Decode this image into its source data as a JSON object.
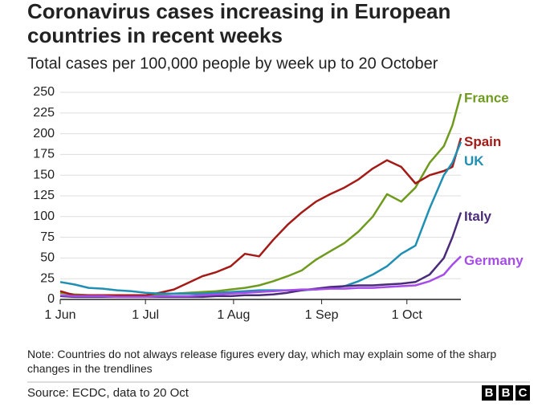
{
  "chart_data": {
    "type": "line",
    "title": [
      "Coronavirus cases increasing in European",
      "countries in recent weeks"
    ],
    "subtitle": "Total cases per 100,000 people by week up to 20 October",
    "x": [
      "1 Jun",
      "6 Jun",
      "11 Jun",
      "16 Jun",
      "21 Jun",
      "26 Jun",
      "1 Jul",
      "6 Jul",
      "11 Jul",
      "16 Jul",
      "21 Jul",
      "26 Jul",
      "31 Jul",
      "5 Aug",
      "10 Aug",
      "15 Aug",
      "20 Aug",
      "25 Aug",
      "30 Aug",
      "4 Sep",
      "9 Sep",
      "14 Sep",
      "19 Sep",
      "24 Sep",
      "29 Sep",
      "4 Oct",
      "9 Oct",
      "14 Oct",
      "17 Oct",
      "20 Oct"
    ],
    "xticks": [
      "1 Jun",
      "1 Jul",
      "1 Aug",
      "1 Sep",
      "1 Oct"
    ],
    "ylim": [
      0,
      250
    ],
    "yticks": [
      0,
      25,
      50,
      75,
      100,
      125,
      150,
      175,
      200,
      225,
      250
    ],
    "grid": true,
    "series": [
      {
        "name": "France",
        "color": "#6e9a1e",
        "values": [
          8,
          6,
          5,
          5,
          5,
          5,
          5,
          6,
          7,
          8,
          9,
          10,
          12,
          14,
          17,
          22,
          28,
          35,
          48,
          58,
          68,
          82,
          100,
          127,
          118,
          135,
          165,
          185,
          210,
          248
        ]
      },
      {
        "name": "Spain",
        "color": "#a31a16",
        "values": [
          10,
          5,
          5,
          5,
          5,
          5,
          5,
          8,
          12,
          20,
          28,
          33,
          40,
          55,
          52,
          72,
          90,
          105,
          118,
          127,
          135,
          145,
          158,
          168,
          160,
          140,
          150,
          155,
          160,
          195
        ]
      },
      {
        "name": "UK",
        "color": "#1f8fb3",
        "values": [
          21,
          18,
          14,
          13,
          11,
          10,
          8,
          7,
          7,
          7,
          7,
          8,
          9,
          10,
          11,
          11,
          11,
          11,
          12,
          14,
          16,
          22,
          30,
          40,
          55,
          65,
          110,
          150,
          165,
          190
        ]
      },
      {
        "name": "Italy",
        "color": "#4b2c7a",
        "values": [
          4,
          3,
          3,
          3,
          3,
          3,
          3,
          3,
          3,
          3,
          3,
          4,
          4,
          5,
          5,
          6,
          8,
          11,
          13,
          15,
          16,
          17,
          17,
          18,
          19,
          21,
          30,
          50,
          75,
          105
        ]
      },
      {
        "name": "Germany",
        "color": "#a64ce8",
        "values": [
          5,
          4,
          4,
          4,
          3,
          3,
          3,
          4,
          4,
          4,
          5,
          6,
          7,
          8,
          9,
          10,
          11,
          12,
          12,
          13,
          13,
          14,
          14,
          15,
          16,
          17,
          22,
          30,
          42,
          52
        ]
      }
    ],
    "note": "Note: Countries do not always release figures every day, which may explain some of the sharp changes in the trendlines",
    "source": "Source: ECDC, data to 20 Oct",
    "logo": [
      "B",
      "B",
      "C"
    ]
  }
}
